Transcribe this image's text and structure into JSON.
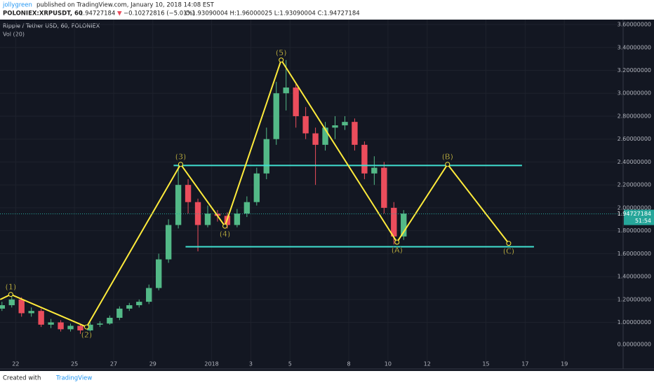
{
  "header": {
    "author": "jollygreen",
    "published": "published on TradingView.com, January 10, 2018 14:08 EST",
    "symbol": "POLONIEX:XRPUSDT, 60",
    "last": "1.94727184",
    "arrow": "▼",
    "change": "−0.10272816 (−5.01%)",
    "ohlc": "O:1.93090004 H:1.96000025 L:1.93090004 C:1.94727184"
  },
  "footer": {
    "created": "Created with",
    "brand": "TradingView"
  },
  "chart_data": {
    "type": "candlestick",
    "title": "Ripple / Tether USD, 60, POLONIEX",
    "indicator": "Vol (20)",
    "up_color": "#53b987",
    "down_color": "#eb4d5c",
    "x": [
      21.3,
      21.8,
      22.3,
      22.8,
      23.3,
      23.8,
      24.3,
      24.8,
      25.3,
      25.8,
      26.3,
      26.8,
      27.3,
      27.8,
      28.3,
      28.8,
      29.3,
      29.8,
      30.3,
      30.8,
      31.3,
      31.8,
      32.3,
      32.8,
      33.3,
      33.8,
      34.3,
      34.8,
      35.3,
      35.8,
      36.3,
      36.8,
      37.3,
      37.8,
      38.3,
      38.8,
      39.3,
      39.8,
      40.3,
      40.8,
      41.3,
      41.8
    ],
    "open": [
      1.12,
      1.15,
      1.2,
      1.08,
      1.1,
      0.98,
      1.0,
      0.94,
      0.97,
      0.93,
      0.98,
      0.99,
      1.04,
      1.12,
      1.15,
      1.18,
      1.3,
      1.55,
      1.85,
      2.2,
      2.05,
      1.85,
      1.95,
      1.93,
      1.85,
      1.95,
      2.05,
      2.3,
      2.6,
      3.0,
      3.05,
      2.8,
      2.65,
      2.55,
      2.7,
      2.72,
      2.75,
      2.55,
      2.3,
      2.35,
      2.0,
      1.75
    ],
    "high": [
      1.18,
      1.24,
      1.22,
      1.13,
      1.12,
      1.03,
      1.02,
      0.99,
      0.99,
      1.0,
      1.01,
      1.06,
      1.14,
      1.17,
      1.2,
      1.33,
      1.6,
      1.9,
      2.37,
      2.25,
      2.08,
      2.02,
      1.98,
      1.96,
      1.99,
      2.1,
      2.35,
      2.7,
      3.1,
      3.29,
      3.08,
      2.88,
      2.7,
      2.75,
      2.8,
      2.8,
      2.78,
      2.58,
      2.45,
      2.4,
      2.05,
      1.98
    ],
    "low": [
      1.1,
      1.13,
      1.05,
      1.05,
      0.96,
      0.95,
      0.92,
      0.92,
      0.9,
      0.92,
      0.96,
      0.98,
      1.02,
      1.1,
      1.13,
      1.16,
      1.28,
      1.52,
      1.82,
      1.95,
      1.62,
      1.83,
      1.88,
      1.82,
      1.83,
      1.92,
      2.02,
      2.25,
      2.55,
      2.85,
      2.7,
      2.6,
      2.2,
      2.5,
      2.6,
      2.68,
      2.5,
      2.25,
      2.2,
      1.95,
      1.68,
      1.72
    ],
    "close": [
      1.15,
      1.2,
      1.08,
      1.1,
      0.98,
      1.0,
      0.94,
      0.97,
      0.93,
      0.98,
      0.99,
      1.04,
      1.12,
      1.15,
      1.18,
      1.3,
      1.55,
      1.85,
      2.2,
      2.05,
      1.85,
      1.95,
      1.93,
      1.85,
      1.95,
      2.05,
      2.3,
      2.6,
      3.0,
      3.05,
      2.8,
      2.65,
      2.55,
      2.7,
      2.72,
      2.75,
      2.55,
      2.3,
      2.35,
      2.0,
      1.75,
      1.95
    ],
    "xlim": [
      21.2,
      53
    ],
    "xticks": [
      22,
      25,
      27,
      29,
      {
        "value": 32,
        "label": "2018"
      },
      {
        "value": 34,
        "label": "3"
      },
      {
        "value": 36,
        "label": "5"
      },
      {
        "value": 39,
        "label": "8"
      },
      {
        "value": 41,
        "label": "10"
      },
      {
        "value": 43,
        "label": "12"
      },
      {
        "value": 46,
        "label": "15"
      },
      {
        "value": 48,
        "label": "17"
      },
      {
        "value": 50,
        "label": "19"
      }
    ],
    "ylim": [
      0.594,
      3.643
    ],
    "yticks": [
      {
        "value": 3.6,
        "label": "3.60000000"
      },
      {
        "value": 3.4,
        "label": "3.40000000"
      },
      {
        "value": 3.2,
        "label": "3.20000000"
      },
      {
        "value": 3.0,
        "label": "3.00000000"
      },
      {
        "value": 2.8,
        "label": "2.80000000"
      },
      {
        "value": 2.6,
        "label": "2.60000000"
      },
      {
        "value": 2.4,
        "label": "2.40000000"
      },
      {
        "value": 2.2,
        "label": "2.20000000"
      },
      {
        "value": 2.0,
        "label": "2.00000000"
      },
      {
        "value": 1.8,
        "label": "1.80000000"
      },
      {
        "value": 1.6,
        "label": "1.60000000"
      },
      {
        "value": 1.4,
        "label": "1.40000000"
      },
      {
        "value": 1.2,
        "label": "1.20000000"
      },
      {
        "value": 1.0,
        "label": "1.00000000"
      }
    ],
    "volume_zero_label": "0.00000000",
    "grid": true,
    "last_price": {
      "value": 1.94727184,
      "label": "1.94727184",
      "countdown": "51:54",
      "color": "#26a69a"
    },
    "wave": {
      "color": "#ffeb3b",
      "labels": [
        null,
        "(1)",
        "(2)",
        "(3)",
        "(4)",
        "(5)",
        "(A)",
        "(B)",
        "(C)"
      ],
      "x": [
        21.21,
        21.75,
        25.62,
        30.42,
        32.68,
        35.55,
        41.46,
        44.04,
        47.16
      ],
      "price": [
        1.2,
        1.244,
        0.96,
        2.38,
        1.84,
        3.29,
        1.7,
        2.38,
        1.69
      ]
    },
    "levels": {
      "color": "#40e0d0",
      "price": [
        2.37,
        1.66
      ],
      "x_start": [
        30.06,
        30.67
      ],
      "x_end": [
        47.84,
        48.45
      ]
    }
  }
}
